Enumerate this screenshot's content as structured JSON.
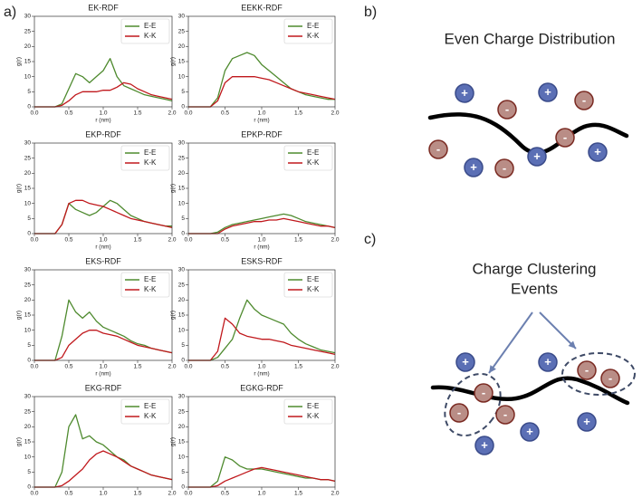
{
  "chart_panel_label": "a)",
  "chart_data": [
    {
      "type": "line",
      "title": "EK-RDF",
      "xlabel": "r (nm)",
      "ylabel": "g(r)",
      "x": [
        0,
        0.1,
        0.2,
        0.3,
        0.4,
        0.5,
        0.6,
        0.7,
        0.8,
        0.9,
        1.0,
        1.1,
        1.2,
        1.3,
        1.4,
        1.5,
        1.6,
        1.7,
        1.8,
        1.9,
        2.0
      ],
      "xlim": [
        0,
        2
      ],
      "ylim": [
        0,
        30
      ],
      "xticks": [
        {
          "value": 0,
          "label": "0.0"
        },
        0.5,
        {
          "value": 1,
          "label": "1.0"
        },
        1.5,
        {
          "value": 2,
          "label": "2.0"
        }
      ],
      "yticks": [
        0,
        5,
        10,
        15,
        20,
        25,
        30
      ],
      "legend": "upper right",
      "series": [
        {
          "name": "E-E",
          "color": "#4e8a2e",
          "values": [
            0,
            0,
            0,
            0,
            1,
            6,
            11,
            10,
            8,
            10,
            12,
            16,
            10,
            7,
            6,
            5,
            4,
            3.5,
            3,
            2.5,
            2
          ]
        },
        {
          "name": "K-K",
          "color": "#c0181c",
          "values": [
            0,
            0,
            0,
            0,
            0.5,
            2,
            4,
            5,
            5,
            5,
            5.5,
            5.5,
            6.5,
            8,
            7.5,
            6,
            5,
            4,
            3.5,
            3,
            2.5
          ]
        }
      ]
    },
    {
      "type": "line",
      "title": "EEKK-RDF",
      "xlabel": "r (nm)",
      "ylabel": "g(r)",
      "x": [
        0,
        0.1,
        0.2,
        0.3,
        0.4,
        0.5,
        0.6,
        0.7,
        0.8,
        0.9,
        1.0,
        1.1,
        1.2,
        1.3,
        1.4,
        1.5,
        1.6,
        1.7,
        1.8,
        1.9,
        2.0
      ],
      "xlim": [
        0,
        2
      ],
      "ylim": [
        0,
        30
      ],
      "xticks": [
        {
          "value": 0,
          "label": "0.0"
        },
        0.5,
        {
          "value": 1,
          "label": "1.0"
        },
        1.5,
        {
          "value": 2,
          "label": "2.0"
        }
      ],
      "yticks": [
        0,
        5,
        10,
        15,
        20,
        25,
        30
      ],
      "legend": "upper right",
      "series": [
        {
          "name": "E-E",
          "color": "#4e8a2e",
          "values": [
            0,
            0,
            0,
            0,
            3,
            12,
            16,
            17,
            18,
            17,
            14,
            12,
            10,
            8,
            6,
            5,
            4,
            3.5,
            3,
            2.5,
            2.5
          ]
        },
        {
          "name": "K-K",
          "color": "#c0181c",
          "values": [
            0,
            0,
            0,
            0,
            2,
            8,
            10,
            10,
            10,
            10,
            9.5,
            9,
            8,
            7,
            6,
            5,
            4.5,
            4,
            3.5,
            3,
            2.5
          ]
        }
      ]
    },
    {
      "type": "line",
      "title": "EKP-RDF",
      "xlabel": "r (nm)",
      "ylabel": "g(r)",
      "x": [
        0,
        0.1,
        0.2,
        0.3,
        0.4,
        0.5,
        0.6,
        0.7,
        0.8,
        0.9,
        1.0,
        1.1,
        1.2,
        1.3,
        1.4,
        1.5,
        1.6,
        1.7,
        1.8,
        1.9,
        2.0
      ],
      "xlim": [
        0,
        2
      ],
      "ylim": [
        0,
        30
      ],
      "xticks": [
        {
          "value": 0,
          "label": "0.0"
        },
        0.5,
        {
          "value": 1,
          "label": "1.0"
        },
        1.5,
        {
          "value": 2,
          "label": "2.0"
        }
      ],
      "yticks": [
        0,
        5,
        10,
        15,
        20,
        25,
        30
      ],
      "legend": "upper right",
      "series": [
        {
          "name": "E-E",
          "color": "#4e8a2e",
          "values": [
            0,
            0,
            0,
            0,
            3,
            10,
            8,
            7,
            6,
            7,
            9,
            11,
            10,
            8,
            6,
            5,
            4,
            3.5,
            3,
            2.5,
            2.5
          ]
        },
        {
          "name": "K-K",
          "color": "#c0181c",
          "values": [
            0,
            0,
            0,
            0,
            3,
            10,
            11,
            11,
            10,
            9.5,
            9,
            8,
            7,
            6,
            5,
            4.5,
            4,
            3.5,
            3,
            2.5,
            2
          ]
        }
      ]
    },
    {
      "type": "line",
      "title": "EPKP-RDF",
      "xlabel": "r (nm)",
      "ylabel": "g(r)",
      "x": [
        0,
        0.1,
        0.2,
        0.3,
        0.4,
        0.5,
        0.6,
        0.7,
        0.8,
        0.9,
        1.0,
        1.1,
        1.2,
        1.3,
        1.4,
        1.5,
        1.6,
        1.7,
        1.8,
        1.9,
        2.0
      ],
      "xlim": [
        0,
        2
      ],
      "ylim": [
        0,
        30
      ],
      "xticks": [
        {
          "value": 0,
          "label": "0.0"
        },
        0.5,
        {
          "value": 1,
          "label": "1.0"
        },
        1.5,
        {
          "value": 2,
          "label": "2.0"
        }
      ],
      "yticks": [
        0,
        5,
        10,
        15,
        20,
        25,
        30
      ],
      "legend": "upper right",
      "series": [
        {
          "name": "E-E",
          "color": "#4e8a2e",
          "values": [
            0,
            0,
            0,
            0,
            0.5,
            2,
            3,
            3.5,
            4,
            4.5,
            5,
            5.5,
            6,
            6.5,
            6,
            5,
            4,
            3.5,
            3,
            2.5,
            2
          ]
        },
        {
          "name": "K-K",
          "color": "#c0181c",
          "values": [
            0,
            0,
            0,
            0,
            0,
            1.5,
            2.5,
            3,
            3.5,
            4,
            4,
            4.5,
            4.5,
            5,
            4.5,
            4,
            3.5,
            3,
            2.5,
            2.5,
            2
          ]
        }
      ]
    },
    {
      "type": "line",
      "title": "EKS-RDF",
      "xlabel": "r (nm)",
      "ylabel": "g(r)",
      "x": [
        0,
        0.1,
        0.2,
        0.3,
        0.4,
        0.5,
        0.6,
        0.7,
        0.8,
        0.9,
        1.0,
        1.1,
        1.2,
        1.3,
        1.4,
        1.5,
        1.6,
        1.7,
        1.8,
        1.9,
        2.0
      ],
      "xlim": [
        0,
        2
      ],
      "ylim": [
        0,
        30
      ],
      "xticks": [
        {
          "value": 0,
          "label": "0.0"
        },
        0.5,
        {
          "value": 1,
          "label": "1.0"
        },
        1.5,
        {
          "value": 2,
          "label": "2.0"
        }
      ],
      "yticks": [
        0,
        5,
        10,
        15,
        20,
        25,
        30
      ],
      "legend": "upper right",
      "series": [
        {
          "name": "E-E",
          "color": "#4e8a2e",
          "values": [
            0,
            0,
            0,
            0,
            8,
            20,
            16,
            14,
            16,
            13,
            11,
            10,
            9,
            8,
            6.5,
            5.5,
            5,
            4,
            3.5,
            3,
            2.5
          ]
        },
        {
          "name": "K-K",
          "color": "#c0181c",
          "values": [
            0,
            0,
            0,
            0,
            1,
            5,
            7,
            9,
            10,
            10,
            9,
            8.5,
            8,
            7,
            6,
            5,
            4.5,
            4,
            3.5,
            3,
            2.5
          ]
        }
      ]
    },
    {
      "type": "line",
      "title": "ESKS-RDF",
      "xlabel": "r (nm)",
      "ylabel": "g(r)",
      "x": [
        0,
        0.1,
        0.2,
        0.3,
        0.4,
        0.5,
        0.6,
        0.7,
        0.8,
        0.9,
        1.0,
        1.1,
        1.2,
        1.3,
        1.4,
        1.5,
        1.6,
        1.7,
        1.8,
        1.9,
        2.0
      ],
      "xlim": [
        0,
        2
      ],
      "ylim": [
        0,
        30
      ],
      "xticks": [
        {
          "value": 0,
          "label": "0.0"
        },
        0.5,
        {
          "value": 1,
          "label": "1.0"
        },
        1.5,
        {
          "value": 2,
          "label": "2.0"
        }
      ],
      "yticks": [
        0,
        5,
        10,
        15,
        20,
        25,
        30
      ],
      "legend": "upper right",
      "series": [
        {
          "name": "E-E",
          "color": "#4e8a2e",
          "values": [
            0,
            0,
            0,
            0,
            1,
            4,
            7,
            14,
            20,
            17,
            15,
            14,
            13,
            12,
            9,
            7,
            5.5,
            4.5,
            3.5,
            3,
            2.5
          ]
        },
        {
          "name": "K-K",
          "color": "#c0181c",
          "values": [
            0,
            0,
            0,
            0,
            3,
            14,
            12,
            9,
            8,
            7.5,
            7,
            7,
            6.5,
            6,
            5,
            4.5,
            4,
            3.5,
            3,
            2.5,
            2
          ]
        }
      ]
    },
    {
      "type": "line",
      "title": "EKG-RDF",
      "xlabel": "r (nm)",
      "ylabel": "g(r)",
      "x": [
        0,
        0.1,
        0.2,
        0.3,
        0.4,
        0.5,
        0.6,
        0.7,
        0.8,
        0.9,
        1.0,
        1.1,
        1.2,
        1.3,
        1.4,
        1.5,
        1.6,
        1.7,
        1.8,
        1.9,
        2.0
      ],
      "xlim": [
        0,
        2
      ],
      "ylim": [
        0,
        30
      ],
      "xticks": [
        {
          "value": 0,
          "label": "0.0"
        },
        0.5,
        {
          "value": 1,
          "label": "1.0"
        },
        1.5,
        {
          "value": 2,
          "label": "2.0"
        }
      ],
      "yticks": [
        0,
        5,
        10,
        15,
        20,
        25,
        30
      ],
      "legend": "upper right",
      "series": [
        {
          "name": "E-E",
          "color": "#4e8a2e",
          "values": [
            0,
            0,
            0,
            0,
            5,
            20,
            24,
            16,
            17,
            15,
            14,
            12,
            10,
            9,
            7,
            6,
            5,
            4,
            3.5,
            3,
            2.5
          ]
        },
        {
          "name": "K-K",
          "color": "#c0181c",
          "values": [
            0,
            0,
            0,
            0,
            0.5,
            2,
            4,
            6,
            9,
            11,
            12,
            11,
            10,
            8.5,
            7,
            6,
            5,
            4,
            3.5,
            3,
            2.5
          ]
        }
      ]
    },
    {
      "type": "line",
      "title": "EGKG-RDF",
      "xlabel": "r (nm)",
      "ylabel": "g(r)",
      "x": [
        0,
        0.1,
        0.2,
        0.3,
        0.4,
        0.5,
        0.6,
        0.7,
        0.8,
        0.9,
        1.0,
        1.1,
        1.2,
        1.3,
        1.4,
        1.5,
        1.6,
        1.7,
        1.8,
        1.9,
        2.0
      ],
      "xlim": [
        0,
        2
      ],
      "ylim": [
        0,
        30
      ],
      "xticks": [
        {
          "value": 0,
          "label": "0.0"
        },
        0.5,
        {
          "value": 1,
          "label": "1.0"
        },
        1.5,
        {
          "value": 2,
          "label": "2.0"
        }
      ],
      "yticks": [
        0,
        5,
        10,
        15,
        20,
        25,
        30
      ],
      "legend": "upper right",
      "series": [
        {
          "name": "E-E",
          "color": "#4e8a2e",
          "values": [
            0,
            0,
            0,
            0,
            2,
            10,
            9,
            7,
            6,
            6,
            6,
            5.5,
            5,
            4.5,
            4,
            3.5,
            3,
            3,
            2.5,
            2.5,
            2
          ]
        },
        {
          "name": "K-K",
          "color": "#c0181c",
          "values": [
            0,
            0,
            0,
            0,
            0.5,
            2,
            3,
            4,
            5,
            6,
            6.5,
            6,
            5.5,
            5,
            4.5,
            4,
            3.5,
            3,
            2.5,
            2.5,
            2
          ]
        }
      ]
    }
  ],
  "diagrams": [
    {
      "label": "b)",
      "title": [
        "Even Charge Distribution"
      ],
      "ions": [
        {
          "sign": "+",
          "color": "#5b6fb5"
        },
        {
          "sign": "+",
          "color": "#5b6fb5"
        },
        {
          "sign": "+",
          "color": "#5b6fb5"
        },
        {
          "sign": "+",
          "color": "#5b6fb5"
        },
        {
          "sign": "+",
          "color": "#5b6fb5"
        },
        {
          "sign": "-",
          "color": "#b98d86"
        },
        {
          "sign": "-",
          "color": "#b98d86"
        },
        {
          "sign": "-",
          "color": "#b98d86"
        },
        {
          "sign": "-",
          "color": "#b98d86"
        },
        {
          "sign": "-",
          "color": "#b98d86"
        }
      ]
    },
    {
      "label": "c)",
      "title": [
        "Charge Clustering",
        "Events"
      ],
      "ions": [
        {
          "sign": "+",
          "color": "#5b6fb5"
        },
        {
          "sign": "+",
          "color": "#5b6fb5"
        },
        {
          "sign": "+",
          "color": "#5b6fb5"
        },
        {
          "sign": "+",
          "color": "#5b6fb5"
        },
        {
          "sign": "+",
          "color": "#5b6fb5"
        },
        {
          "sign": "-",
          "color": "#b98d86"
        },
        {
          "sign": "-",
          "color": "#b98d86"
        },
        {
          "sign": "-",
          "color": "#b98d86"
        },
        {
          "sign": "-",
          "color": "#b98d86"
        },
        {
          "sign": "-",
          "color": "#b98d86"
        }
      ]
    }
  ]
}
